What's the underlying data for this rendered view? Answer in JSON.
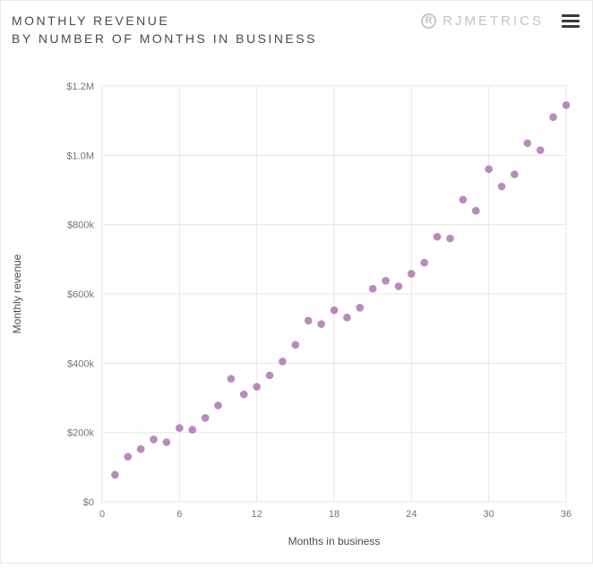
{
  "header": {
    "title_line1": "MONTHLY REVENUE",
    "title_line2": "BY NUMBER OF MONTHS IN BUSINESS",
    "brand": "RJMETRICS",
    "brand_icon_letter": "R"
  },
  "chart_data": {
    "type": "scatter",
    "title": "Monthly revenue by number of months in business",
    "xlabel": "Months in business",
    "ylabel": "Monthly revenue",
    "xlim": [
      0,
      36
    ],
    "ylim": [
      0,
      1200000
    ],
    "x_ticks": [
      0,
      6,
      12,
      18,
      24,
      30,
      36
    ],
    "y_ticks": [
      0,
      200000,
      400000,
      600000,
      800000,
      1000000,
      1200000
    ],
    "y_tick_labels": [
      "$0",
      "$200k",
      "$400k",
      "$600k",
      "$800k",
      "$1.0M",
      "$1.2M"
    ],
    "grid": true,
    "legend": "none",
    "point_color": "#a96bad",
    "grid_color": "#e6e6e6",
    "x": [
      1,
      2,
      3,
      4,
      5,
      6,
      7,
      8,
      9,
      10,
      11,
      12,
      13,
      14,
      15,
      16,
      17,
      18,
      19,
      20,
      21,
      22,
      23,
      24,
      25,
      26,
      27,
      28,
      29,
      30,
      31,
      32,
      33,
      34,
      35,
      36
    ],
    "y": [
      78000,
      130000,
      152000,
      180000,
      172000,
      213000,
      208000,
      242000,
      278000,
      355000,
      310000,
      332000,
      365000,
      405000,
      453000,
      523000,
      513000,
      553000,
      532000,
      560000,
      615000,
      638000,
      622000,
      658000,
      690000,
      765000,
      760000,
      872000,
      840000,
      960000,
      910000,
      945000,
      1035000,
      1015000,
      1110000,
      1145000
    ]
  }
}
